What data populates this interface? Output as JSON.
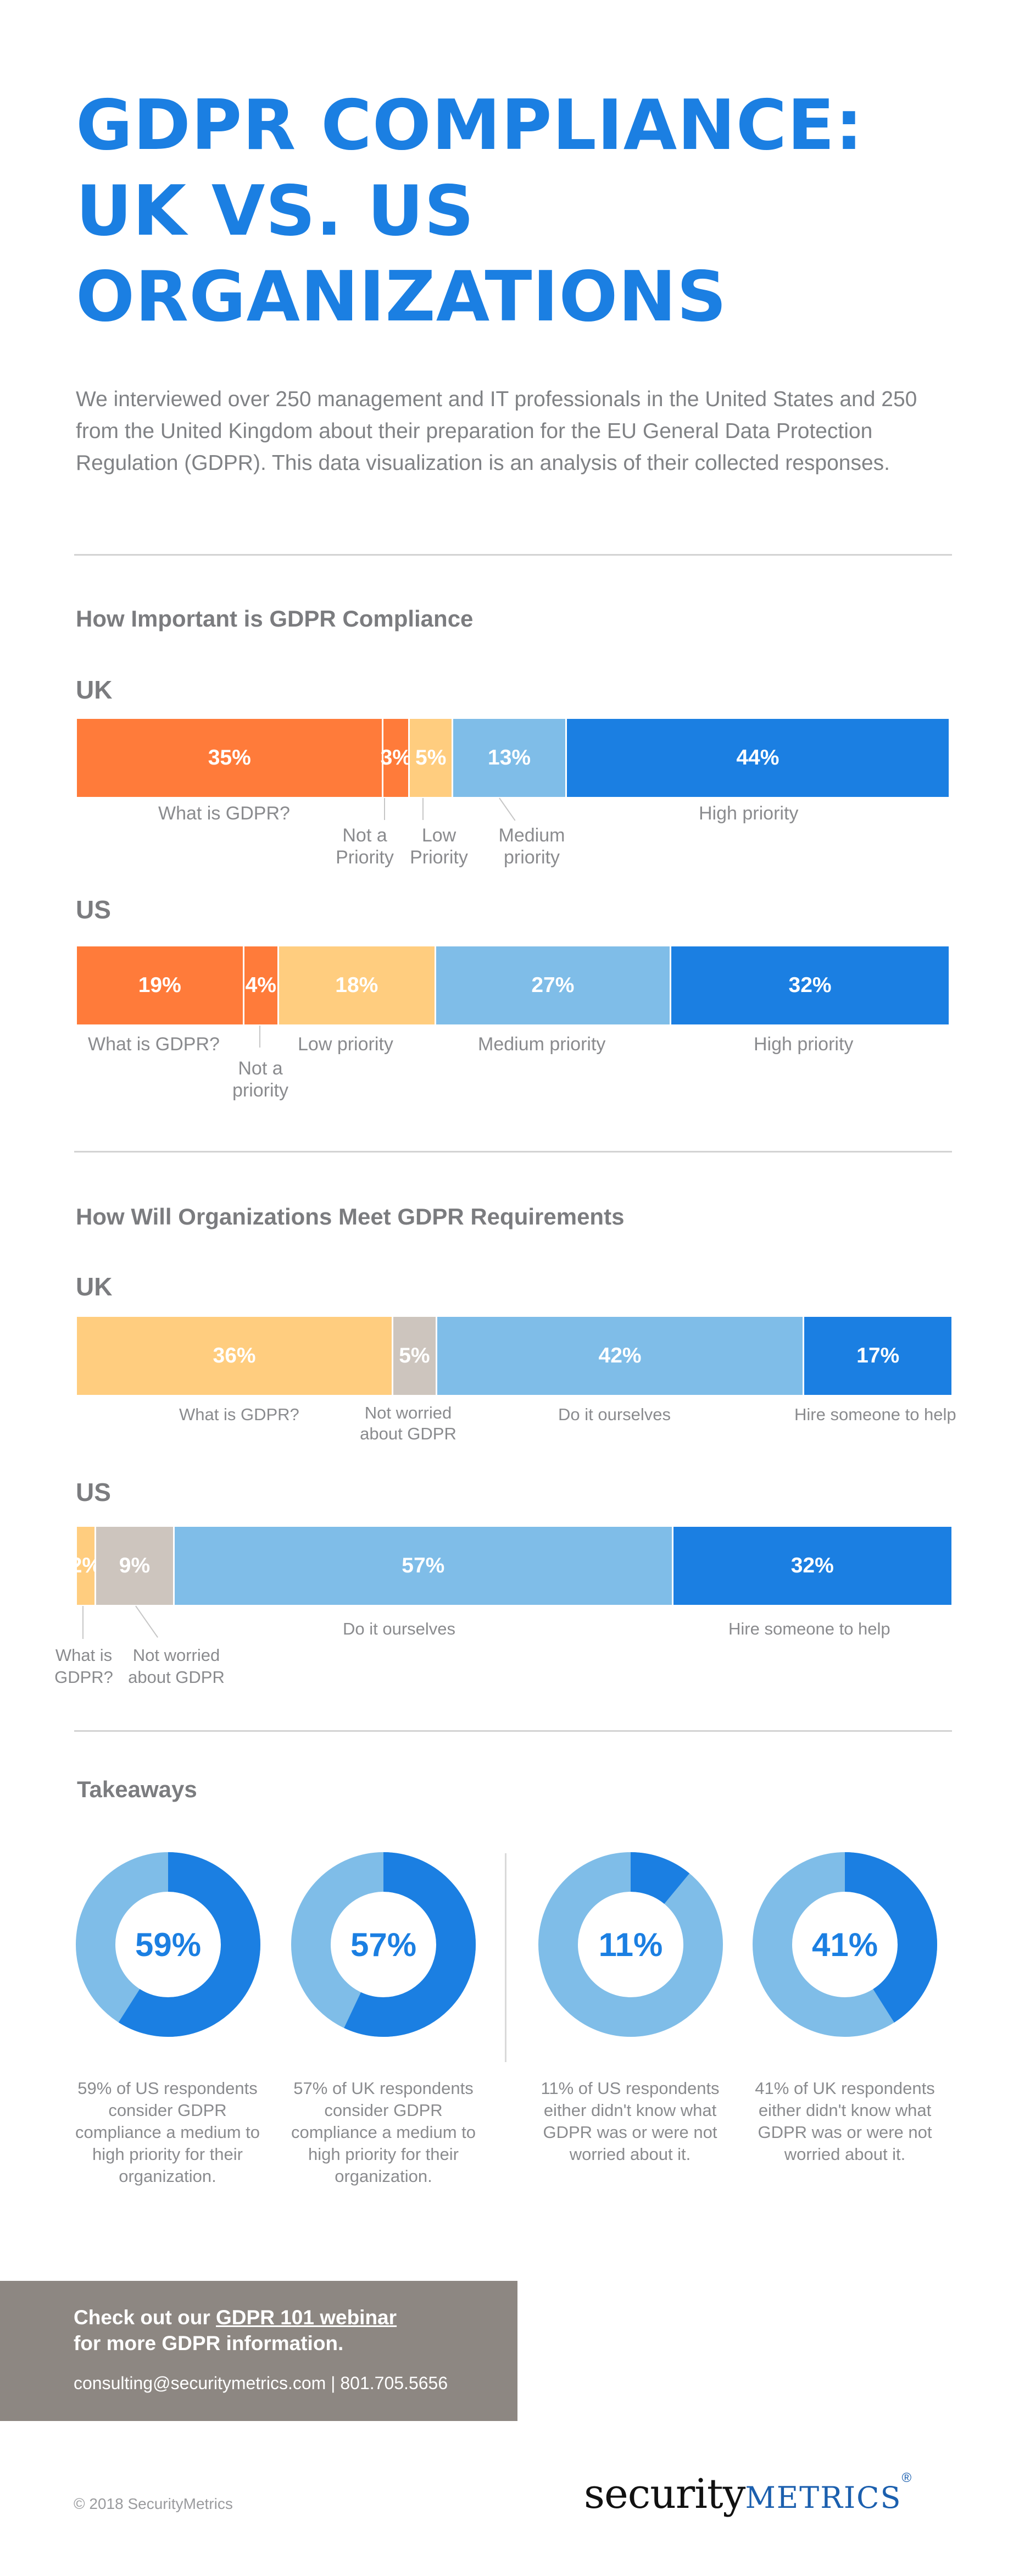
{
  "title_lines": [
    "GDPR COMPLIANCE:",
    "UK VS. US",
    "ORGANIZATIONS"
  ],
  "intro": "We interviewed over 250 management and IT professionals in the United States and 250 from the United Kingdom about their preparation for the EU General Data Protection Regulation (GDPR). This data visualization is an analysis of their collected responses.",
  "colors": {
    "orange": "#ff7b3a",
    "light_orange": "#ffcd7f",
    "light_blue": "#7fbde8",
    "blue": "#1b7fe2",
    "gray": "#cdc5be",
    "donut_track": "#7fbde8",
    "donut_fill": "#1b7fe2"
  },
  "section1": {
    "title": "How Important is GDPR Compliance",
    "uk_label": "UK",
    "us_label": "US"
  },
  "section2": {
    "title": "How Will Organizations Meet GDPR Requirements",
    "uk_label": "UK",
    "us_label": "US"
  },
  "chart_data": [
    {
      "type": "bar",
      "stacked": true,
      "orientation": "horizontal",
      "group": "How Important is GDPR Compliance",
      "country": "UK",
      "categories": [
        "What is GDPR?",
        "Not a Priority",
        "Low Priority",
        "Medium priority",
        "High priority"
      ],
      "values": [
        35,
        3,
        5,
        13,
        44
      ],
      "labels": [
        "35%",
        "3%",
        "5%",
        "13%",
        "44%"
      ],
      "colors": [
        "#ff7b3a",
        "#ff7b3a",
        "#ffcd7f",
        "#7fbde8",
        "#1b7fe2"
      ]
    },
    {
      "type": "bar",
      "stacked": true,
      "orientation": "horizontal",
      "group": "How Important is GDPR Compliance",
      "country": "US",
      "categories": [
        "What is GDPR?",
        "Not a priority",
        "Low priority",
        "Medium priority",
        "High priority"
      ],
      "values": [
        19,
        4,
        18,
        27,
        32
      ],
      "labels": [
        "19%",
        "4%",
        "18%",
        "27%",
        "32%"
      ],
      "colors": [
        "#ff7b3a",
        "#ff7b3a",
        "#ffcd7f",
        "#7fbde8",
        "#1b7fe2"
      ]
    },
    {
      "type": "bar",
      "stacked": true,
      "orientation": "horizontal",
      "group": "How Will Organizations Meet GDPR Requirements",
      "country": "UK",
      "categories": [
        "What is GDPR?",
        "Not worried about GDPR",
        "Do it ourselves",
        "Hire someone to help"
      ],
      "values": [
        36,
        5,
        42,
        17
      ],
      "labels": [
        "36%",
        "5%",
        "42%",
        "17%"
      ],
      "colors": [
        "#ffcd7f",
        "#cdc5be",
        "#7fbde8",
        "#1b7fe2"
      ]
    },
    {
      "type": "bar",
      "stacked": true,
      "orientation": "horizontal",
      "group": "How Will Organizations Meet GDPR Requirements",
      "country": "US",
      "categories": [
        "What is GDPR?",
        "Not worried about GDPR",
        "Do it ourselves",
        "Hire someone to help"
      ],
      "values": [
        2,
        9,
        57,
        32
      ],
      "labels": [
        "2%",
        "9%",
        "57%",
        "32%"
      ],
      "colors": [
        "#ffcd7f",
        "#cdc5be",
        "#7fbde8",
        "#1b7fe2"
      ]
    },
    {
      "type": "pie",
      "donut": true,
      "group": "Takeaways",
      "values": [
        59,
        41
      ],
      "label": "59%",
      "caption": "59% of US respondents consider GDPR compliance a medium to high priority for their organization."
    },
    {
      "type": "pie",
      "donut": true,
      "group": "Takeaways",
      "values": [
        57,
        43
      ],
      "label": "57%",
      "caption": "57% of UK respondents consider GDPR compliance a medium to high priority for their organization."
    },
    {
      "type": "pie",
      "donut": true,
      "group": "Takeaways",
      "values": [
        11,
        89
      ],
      "label": "11%",
      "caption": "11% of US respondents either didn't know what GDPR was or were not worried about it."
    },
    {
      "type": "pie",
      "donut": true,
      "group": "Takeaways",
      "values": [
        41,
        59
      ],
      "label": "41%",
      "caption": "41% of UK respondents either didn't know what GDPR was or were not worried about it."
    }
  ],
  "takeaways_title": "Takeaways",
  "cta": {
    "line1_prefix": "Check out our ",
    "line1_link": "GDPR 101 webinar",
    "line2": "for more GDPR information.",
    "contact": "consulting@securitymetrics.com | 801.705.5656"
  },
  "footer": {
    "copyright": "© 2018 SecurityMetrics",
    "logo_security": "security",
    "logo_metrics": "METRICS",
    "logo_reg": "®"
  }
}
